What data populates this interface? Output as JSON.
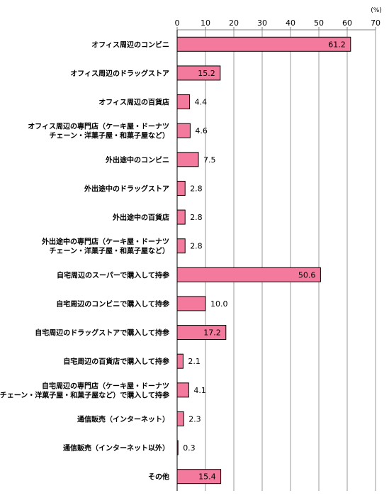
{
  "chart_data": {
    "type": "bar",
    "orientation": "horizontal",
    "unit": "(%)",
    "xlim": [
      0,
      70
    ],
    "ticks": [
      "0",
      "10",
      "20",
      "30",
      "40",
      "50",
      "60",
      "70"
    ],
    "grid": true,
    "bar_color": "#f37a9c",
    "categories": [
      [
        "オフィス周辺のコンビニ"
      ],
      [
        "オフィス周辺のドラッグストア"
      ],
      [
        "オフィス周辺の百貨店"
      ],
      [
        "オフィス周辺の専門店（ケーキ屋・ドーナツ",
        "チェーン・洋菓子屋・和菓子屋など）"
      ],
      [
        "外出途中のコンビニ"
      ],
      [
        "外出途中のドラッグストア"
      ],
      [
        "外出途中の百貨店"
      ],
      [
        "外出途中の専門店（ケーキ屋・ドーナツ",
        "チェーン・洋菓子屋・和菓子屋など）"
      ],
      [
        "自宅周辺のスーパーで購入して持参"
      ],
      [
        "自宅周辺のコンビニで購入して持参"
      ],
      [
        "自宅周辺のドラッグストアで購入して持参"
      ],
      [
        "自宅周辺の百貨店で購入して持参"
      ],
      [
        "自宅周辺の専門店（ケーキ屋・ドーナツ",
        "チェーン・洋菓子屋・和菓子屋など）で購入して持参"
      ],
      [
        "通信販売（インターネット）"
      ],
      [
        "通信販売（インターネット以外）"
      ],
      [
        "その他"
      ]
    ],
    "values": [
      61.2,
      15.2,
      4.4,
      4.6,
      7.5,
      2.8,
      2.8,
      2.8,
      50.6,
      10.0,
      17.2,
      2.1,
      4.1,
      2.3,
      0.3,
      15.4
    ],
    "value_labels": [
      "61.2",
      "15.2",
      "4.4",
      "4.6",
      "7.5",
      "2.8",
      "2.8",
      "2.8",
      "50.6",
      "10.0",
      "17.2",
      "2.1",
      "4.1",
      "2.3",
      "0.3",
      "15.4"
    ]
  }
}
